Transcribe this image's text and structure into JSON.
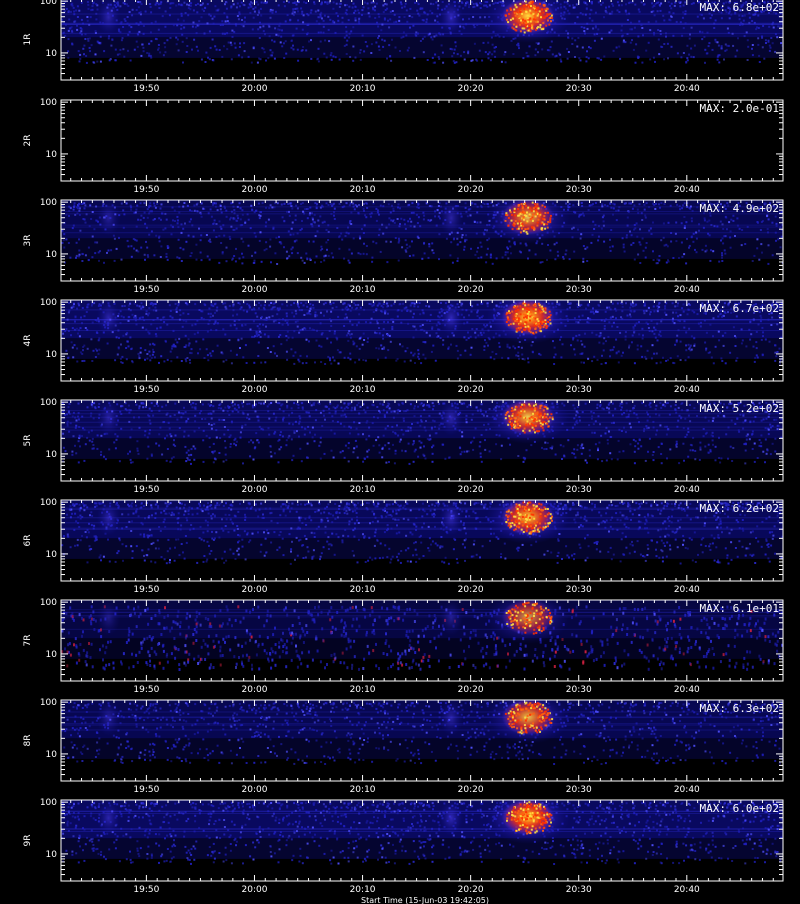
{
  "chart_data": {
    "type": "heatmap",
    "x_tick_labels": [
      "19:50",
      "20:00",
      "20:10",
      "20:20",
      "20:30",
      "20:40"
    ],
    "x_ticks_min": [
      1190,
      1200,
      1210,
      1220,
      1230,
      1240
    ],
    "xlim_min": [
      1182.1,
      1248.9
    ],
    "y_tick_labels": [
      "10",
      "100"
    ],
    "y_log": true,
    "ylim": [
      3,
      110
    ],
    "xlabel": "Start Time (15-Jun-03 19:42:05)",
    "panels": [
      {
        "label": "1R",
        "max_label": "MAX: 6.8e+02",
        "max_value": 680,
        "intensity": 1.0
      },
      {
        "label": "2R",
        "max_label": "MAX: 2.0e-01",
        "max_value": 0.2,
        "intensity": 0.0
      },
      {
        "label": "3R",
        "max_label": "MAX: 4.9e+02",
        "max_value": 490,
        "intensity": 0.85
      },
      {
        "label": "4R",
        "max_label": "MAX: 6.7e+02",
        "max_value": 670,
        "intensity": 1.0
      },
      {
        "label": "5R",
        "max_label": "MAX: 5.2e+02",
        "max_value": 520,
        "intensity": 0.9
      },
      {
        "label": "6R",
        "max_label": "MAX: 6.2e+02",
        "max_value": 620,
        "intensity": 0.95
      },
      {
        "label": "7R",
        "max_label": "MAX: 6.1e+01",
        "max_value": 61,
        "intensity": 0.7
      },
      {
        "label": "8R",
        "max_label": "MAX: 6.3e+02",
        "max_value": 630,
        "intensity": 0.85
      },
      {
        "label": "9R",
        "max_label": "MAX: 6.0e+02",
        "max_value": 600,
        "intensity": 1.0
      }
    ],
    "colors": {
      "frame": "#ffffff",
      "background": "#000000",
      "low": "#1010a0",
      "mid": "#5a3cff",
      "high": "#ff3000",
      "peak": "#ffe040"
    }
  }
}
